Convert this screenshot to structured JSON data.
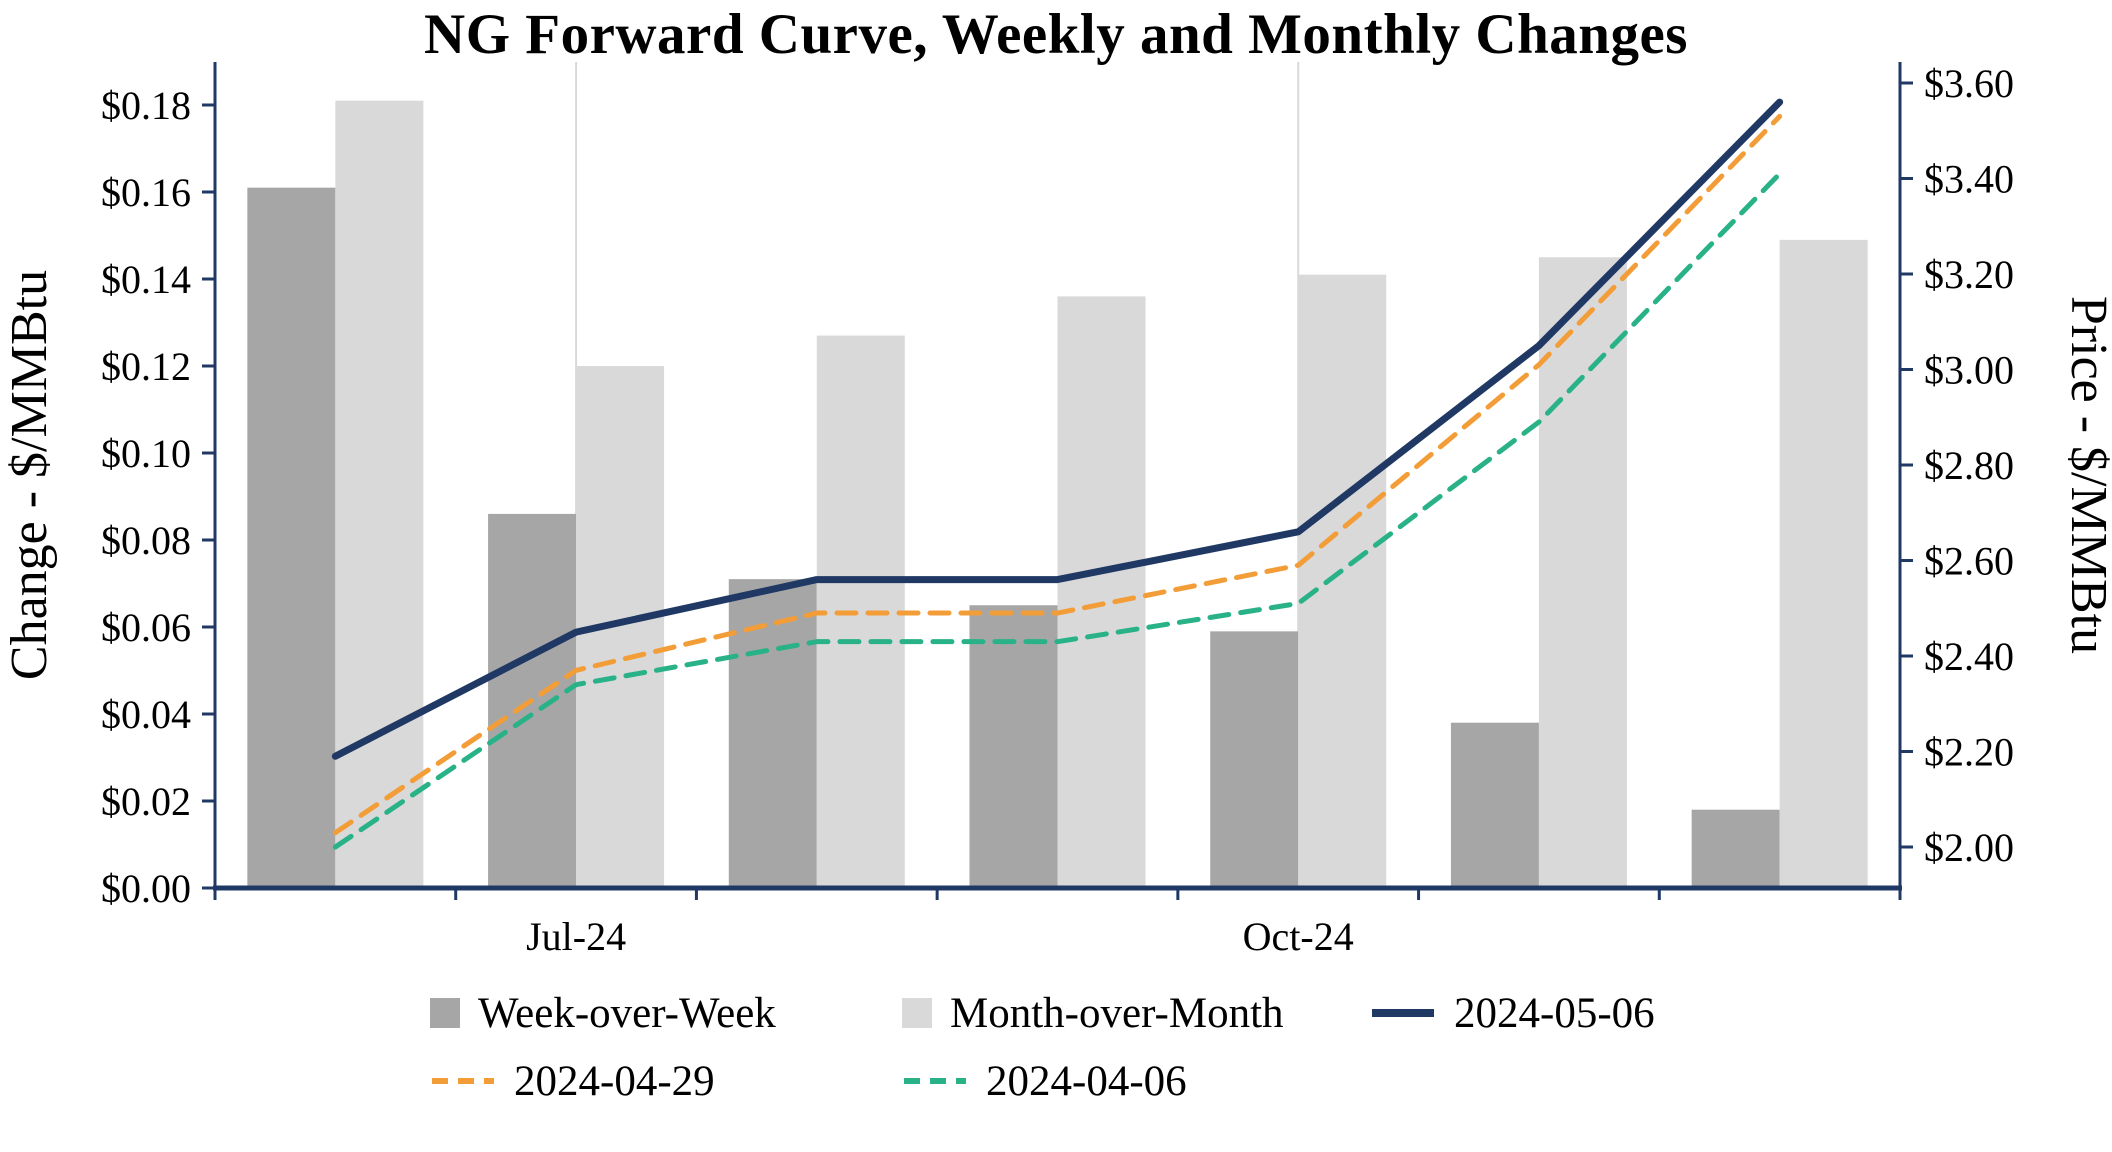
{
  "page": {
    "background": "#ffffff"
  },
  "chart_data": {
    "type": "combo-bar-line",
    "title": "NG Forward Curve, Weekly and Monthly Changes",
    "left_axis": {
      "title": "Change - $/MMBtu",
      "min": 0,
      "max": 0.18,
      "step": 0.02,
      "tick_labels": [
        "$0.00",
        "$0.02",
        "$0.04",
        "$0.06",
        "$0.08",
        "$0.10",
        "$0.12",
        "$0.14",
        "$0.16",
        "$0.18"
      ]
    },
    "right_axis": {
      "title": "Price - $/MMBtu",
      "min": 2.0,
      "max": 3.6,
      "step": 0.2,
      "tick_labels": [
        "$2.00",
        "$2.20",
        "$2.40",
        "$2.60",
        "$2.80",
        "$3.00",
        "$3.20",
        "$3.40",
        "$3.60"
      ]
    },
    "x_axis": {
      "category_count": 7,
      "ticks": [
        {
          "index": 1,
          "label": "Jul-24"
        },
        {
          "index": 4,
          "label": "Oct-24"
        }
      ]
    },
    "bar_series": [
      {
        "name": "Week-over-Week",
        "color": "#a6a6a6",
        "axis": "left",
        "values": [
          0.161,
          0.086,
          0.071,
          0.065,
          0.059,
          0.038,
          0.018
        ]
      },
      {
        "name": "Month-over-Month",
        "color": "#d9d9d9",
        "axis": "left",
        "values": [
          0.181,
          0.12,
          0.127,
          0.136,
          0.141,
          0.145,
          0.149
        ]
      }
    ],
    "line_series": [
      {
        "name": "2024-05-06",
        "color": "#1f3864",
        "dash": "solid",
        "axis": "right",
        "values": [
          2.19,
          2.45,
          2.56,
          2.56,
          2.66,
          3.05,
          3.56
        ]
      },
      {
        "name": "2024-04-29",
        "color": "#f39d38",
        "dash": "dashed",
        "axis": "right",
        "values": [
          2.03,
          2.37,
          2.49,
          2.49,
          2.59,
          3.01,
          3.53
        ]
      },
      {
        "name": "2024-04-06",
        "color": "#29b287",
        "dash": "dashed",
        "axis": "right",
        "values": [
          2.0,
          2.34,
          2.43,
          2.43,
          2.51,
          2.89,
          3.41
        ]
      }
    ],
    "colors": {
      "axis": "#1f3864",
      "gridline": "#d9d9d9"
    }
  }
}
